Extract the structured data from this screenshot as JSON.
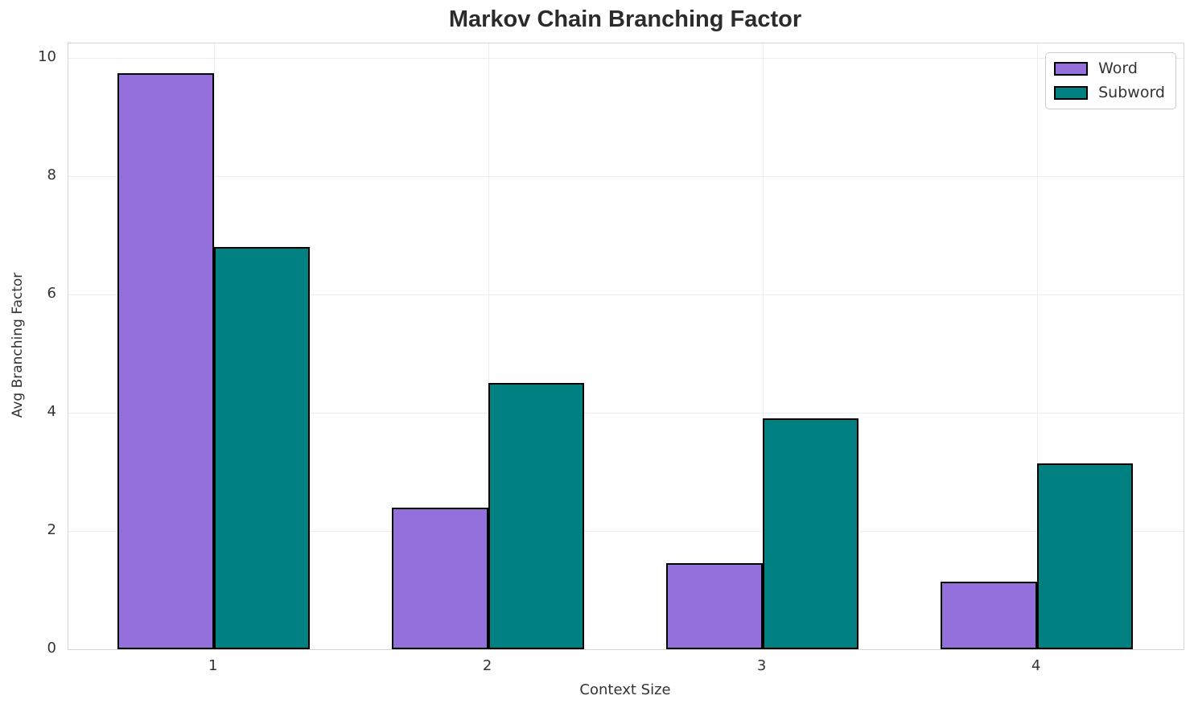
{
  "chart_data": {
    "type": "bar",
    "title": "Markov Chain Branching Factor",
    "xlabel": "Context Size",
    "ylabel": "Avg Branching Factor",
    "categories": [
      "1",
      "2",
      "3",
      "4"
    ],
    "series": [
      {
        "name": "Word",
        "color": "#9370DB",
        "values": [
          9.75,
          2.4,
          1.45,
          1.15
        ]
      },
      {
        "name": "Subword",
        "color": "#008080",
        "values": [
          6.8,
          4.5,
          3.9,
          3.15
        ]
      }
    ],
    "yticks": [
      0,
      2,
      4,
      6,
      8,
      10
    ],
    "ylim": [
      0,
      10.25
    ],
    "xlim": [
      0.47,
      4.535
    ],
    "bar_width": 0.35,
    "bar_edge_color": "#000000",
    "grid": true,
    "grid_color": "#ededed",
    "spine_color": "#d4d4d4",
    "legend_position": "upper right",
    "legend_entries": [
      "Word",
      "Subword"
    ]
  }
}
